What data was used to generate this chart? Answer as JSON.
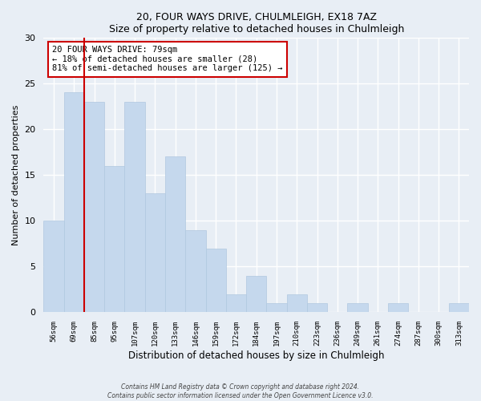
{
  "title": "20, FOUR WAYS DRIVE, CHULMLEIGH, EX18 7AZ",
  "subtitle": "Size of property relative to detached houses in Chulmleigh",
  "xlabel": "Distribution of detached houses by size in Chulmleigh",
  "ylabel": "Number of detached properties",
  "bins": [
    "56sqm",
    "69sqm",
    "85sqm",
    "95sqm",
    "107sqm",
    "120sqm",
    "133sqm",
    "146sqm",
    "159sqm",
    "172sqm",
    "184sqm",
    "197sqm",
    "210sqm",
    "223sqm",
    "236sqm",
    "249sqm",
    "261sqm",
    "274sqm",
    "287sqm",
    "300sqm",
    "313sqm"
  ],
  "values": [
    10,
    24,
    23,
    16,
    23,
    13,
    17,
    9,
    7,
    2,
    4,
    1,
    2,
    1,
    0,
    1,
    0,
    1,
    0,
    0,
    1
  ],
  "bar_color": "#c5d8ed",
  "bar_edge_color": "#b0c8e0",
  "property_line_color": "#cc0000",
  "ylim": [
    0,
    30
  ],
  "yticks": [
    0,
    5,
    10,
    15,
    20,
    25,
    30
  ],
  "annotation_text": "20 FOUR WAYS DRIVE: 79sqm\n← 18% of detached houses are smaller (28)\n81% of semi-detached houses are larger (125) →",
  "annotation_box_color": "#ffffff",
  "annotation_box_edge": "#cc0000",
  "footer_line1": "Contains HM Land Registry data © Crown copyright and database right 2024.",
  "footer_line2": "Contains public sector information licensed under the Open Government Licence v3.0.",
  "bg_color": "#e8eef5",
  "plot_bg_color": "#e8eef5",
  "grid_color": "#ffffff"
}
